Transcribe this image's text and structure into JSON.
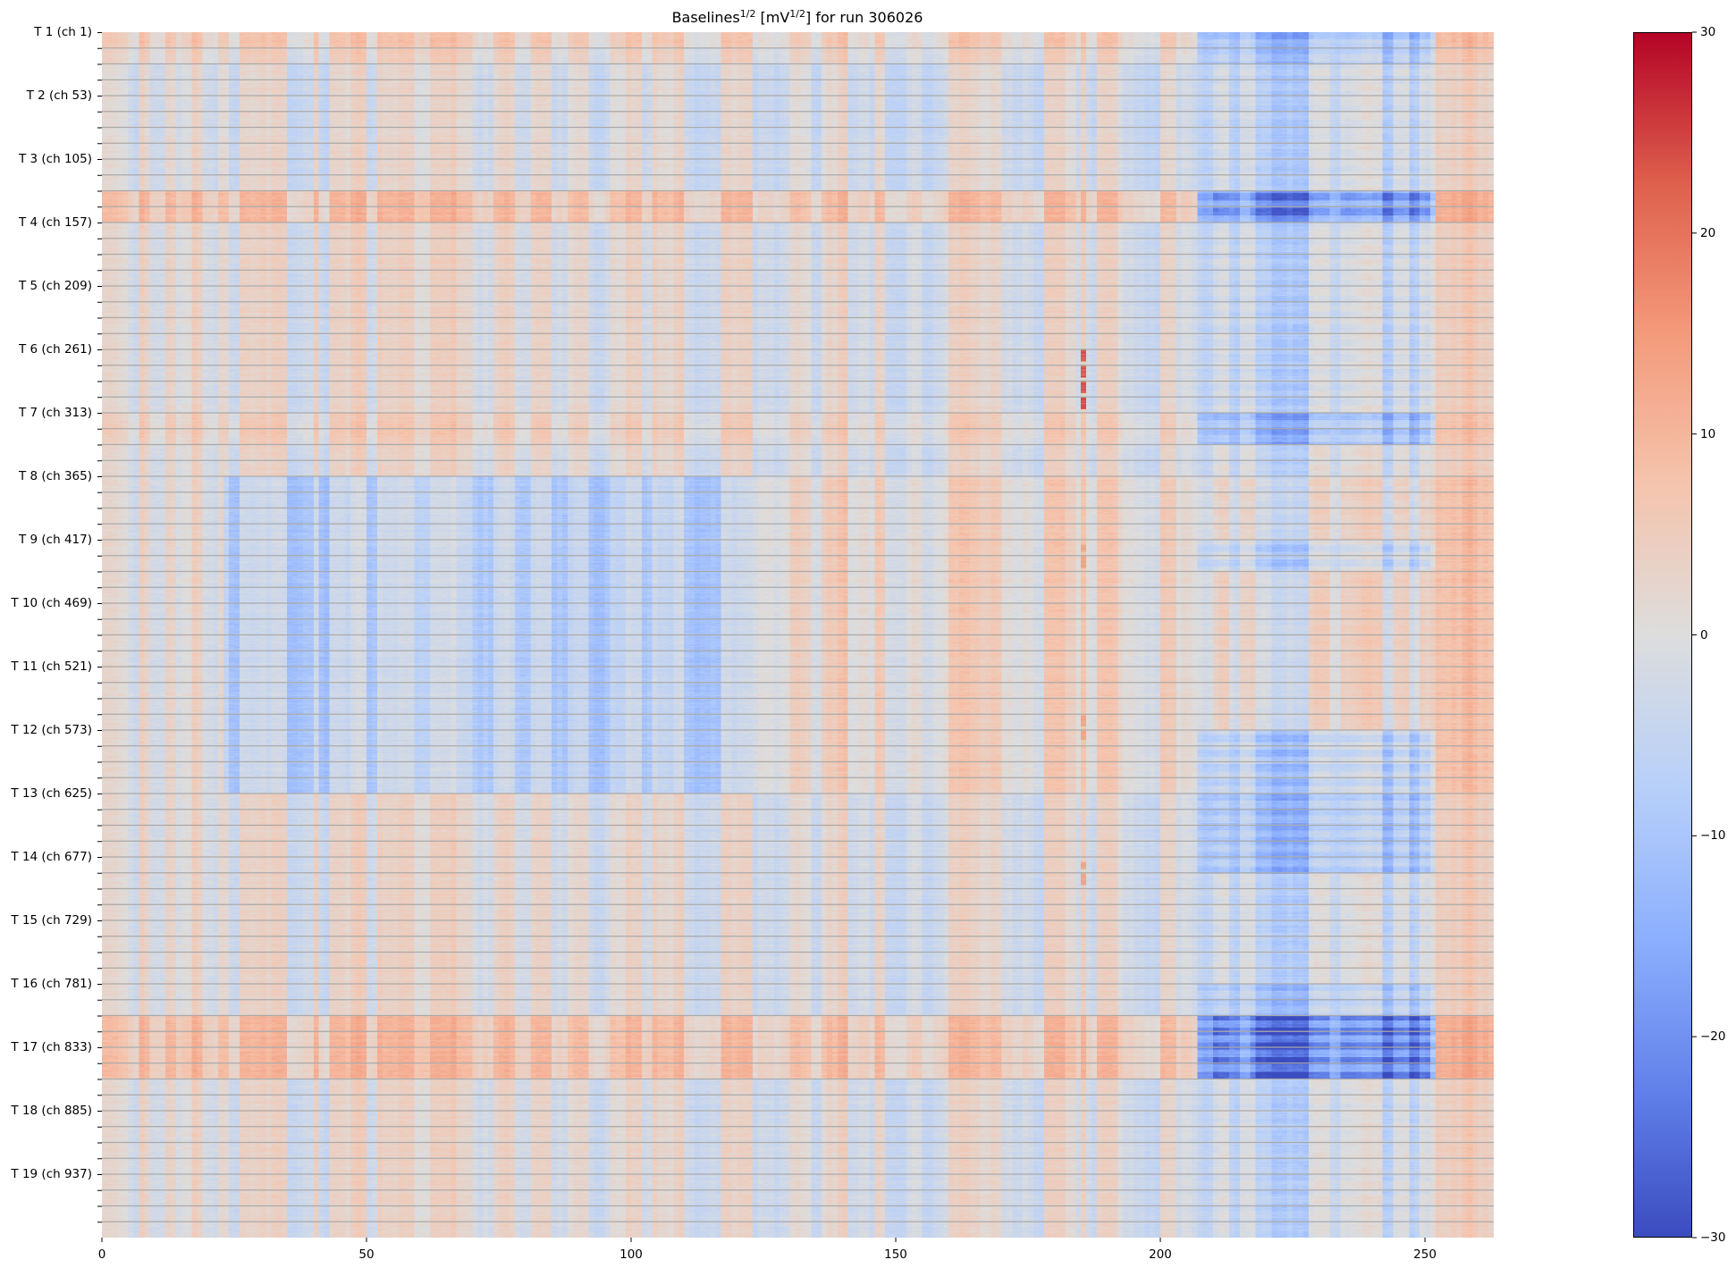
{
  "chart_data": {
    "type": "heatmap",
    "title_parts": [
      {
        "text": "Baselines",
        "sup": false
      },
      {
        "text": "1/2",
        "sup": true
      },
      {
        "text": " [mV",
        "sup": false
      },
      {
        "text": "1/2",
        "sup": true
      },
      {
        "text": "] for run 306026",
        "sup": false
      }
    ],
    "n_columns": 263,
    "n_channels": 988,
    "channels_per_tile": 52,
    "gridline_every_channels": 13,
    "xlim": [
      0,
      263
    ],
    "x_ticks": [
      0,
      50,
      100,
      150,
      200,
      250
    ],
    "y_tick_labels": [
      "T 1 (ch 1)",
      "T 2 (ch 53)",
      "T 3 (ch 105)",
      "T 4 (ch 157)",
      "T 5 (ch 209)",
      "T 6 (ch 261)",
      "T 7 (ch 313)",
      "T 8 (ch 365)",
      "T 9 (ch 417)",
      "T 10 (ch 469)",
      "T 11 (ch 521)",
      "T 12 (ch 573)",
      "T 13 (ch 625)",
      "T 14 (ch 677)",
      "T 15 (ch 729)",
      "T 16 (ch 781)",
      "T 17 (ch 833)",
      "T 18 (ch 885)",
      "T 19 (ch 937)"
    ],
    "colorbar": {
      "colormap": "coolwarm",
      "vmin": -30,
      "vmax": 30,
      "ticks": [
        30,
        20,
        10,
        0,
        -10,
        -20,
        -30
      ],
      "tick_labels": [
        "30",
        "20",
        "10",
        "0",
        "−10",
        "−20",
        "−30"
      ],
      "stops": [
        "#3b4cc0",
        "#6282ea",
        "#8db0fe",
        "#b8d0f9",
        "#dddddd",
        "#f5c4ad",
        "#f49a7b",
        "#de604d",
        "#b40426"
      ]
    },
    "gridline_color": "#aaaaaa",
    "approx_model": {
      "column_profile": [
        [
          0,
          5,
          2
        ],
        [
          5,
          7,
          -3
        ],
        [
          7,
          9,
          4
        ],
        [
          9,
          12,
          -2
        ],
        [
          12,
          14,
          4
        ],
        [
          14,
          17,
          0
        ],
        [
          17,
          19,
          5
        ],
        [
          19,
          22,
          -2
        ],
        [
          22,
          24,
          3
        ],
        [
          24,
          26,
          -4
        ],
        [
          26,
          35,
          4
        ],
        [
          35,
          40,
          -4
        ],
        [
          40,
          41,
          5
        ],
        [
          41,
          43,
          -5
        ],
        [
          43,
          47,
          3
        ],
        [
          47,
          50,
          6
        ],
        [
          50,
          52,
          -3
        ],
        [
          52,
          56,
          4
        ],
        [
          56,
          59,
          6
        ],
        [
          59,
          62,
          0
        ],
        [
          62,
          66,
          5
        ],
        [
          66,
          67,
          8
        ],
        [
          67,
          70,
          3
        ],
        [
          70,
          74,
          -2
        ],
        [
          74,
          78,
          4
        ],
        [
          78,
          81,
          -3
        ],
        [
          81,
          85,
          4
        ],
        [
          85,
          88,
          -3
        ],
        [
          88,
          92,
          2
        ],
        [
          92,
          96,
          -4
        ],
        [
          96,
          99,
          2
        ],
        [
          99,
          102,
          4
        ],
        [
          102,
          104,
          -2
        ],
        [
          104,
          108,
          3
        ],
        [
          108,
          110,
          5
        ],
        [
          110,
          113,
          -4
        ],
        [
          113,
          117,
          -3
        ],
        [
          117,
          120,
          4
        ],
        [
          120,
          123,
          5
        ],
        [
          123,
          130,
          -4
        ],
        [
          130,
          134,
          2
        ],
        [
          134,
          136,
          -5
        ],
        [
          136,
          139,
          3
        ],
        [
          139,
          141,
          5
        ],
        [
          141,
          146,
          -3
        ],
        [
          146,
          148,
          4
        ],
        [
          148,
          152,
          -5
        ],
        [
          152,
          155,
          -2
        ],
        [
          155,
          157,
          -6
        ],
        [
          157,
          160,
          -3
        ],
        [
          160,
          164,
          5
        ],
        [
          164,
          170,
          3
        ],
        [
          170,
          176,
          -3
        ],
        [
          176,
          178,
          -6
        ],
        [
          178,
          182,
          6
        ],
        [
          182,
          184,
          3
        ],
        [
          184,
          185,
          -3
        ],
        [
          185,
          186,
          5
        ],
        [
          186,
          188,
          -4
        ],
        [
          188,
          192,
          4
        ],
        [
          192,
          195,
          -2
        ],
        [
          195,
          200,
          -5
        ],
        [
          200,
          203,
          4
        ],
        [
          203,
          207,
          -2
        ],
        [
          207,
          210,
          -3
        ],
        [
          210,
          213,
          4
        ],
        [
          213,
          215,
          -4
        ],
        [
          215,
          218,
          3
        ],
        [
          218,
          221,
          -2
        ],
        [
          221,
          228,
          -5
        ],
        [
          228,
          232,
          4
        ],
        [
          232,
          234,
          -3
        ],
        [
          234,
          238,
          4
        ],
        [
          238,
          242,
          6
        ],
        [
          242,
          244,
          -4
        ],
        [
          244,
          247,
          5
        ],
        [
          247,
          249,
          -3
        ],
        [
          249,
          252,
          3
        ],
        [
          252,
          257,
          6
        ],
        [
          257,
          260,
          8
        ],
        [
          260,
          263,
          5
        ]
      ],
      "channel_profile": [
        [
          0,
          13,
          5
        ],
        [
          13,
          26,
          2
        ],
        [
          26,
          130,
          -1
        ],
        [
          130,
          156,
          8
        ],
        [
          156,
          312,
          0
        ],
        [
          312,
          338,
          3
        ],
        [
          338,
          364,
          0
        ],
        [
          364,
          624,
          0
        ],
        [
          624,
          806,
          0
        ],
        [
          806,
          858,
          8
        ],
        [
          858,
          988,
          0
        ]
      ],
      "region_offsets": [
        {
          "columns": [
            23,
            123
          ],
          "channels": [
            364,
            624
          ],
          "value": -7
        },
        {
          "columns": [
            123,
            263
          ],
          "channels": [
            364,
            624
          ],
          "value": 3
        }
      ],
      "right_block": {
        "columns": [
          207,
          252
        ],
        "column_weights": [
          [
            207,
            210,
            0.6
          ],
          [
            210,
            213,
            1.1
          ],
          [
            213,
            217,
            0.7
          ],
          [
            217,
            232,
            1.0
          ],
          [
            232,
            234,
            0.5
          ],
          [
            234,
            251,
            1.0
          ],
          [
            251,
            252,
            0.6
          ]
        ],
        "channel_offsets": [
          [
            0,
            13,
            -12
          ],
          [
            13,
            26,
            -10
          ],
          [
            26,
            130,
            -4
          ],
          [
            130,
            156,
            -20
          ],
          [
            156,
            312,
            -5
          ],
          [
            312,
            338,
            -13
          ],
          [
            338,
            416,
            -3
          ],
          [
            416,
            442,
            -9
          ],
          [
            442,
            572,
            -2
          ],
          [
            572,
            690,
            -11
          ],
          [
            690,
            780,
            -4
          ],
          [
            780,
            806,
            -9
          ],
          [
            806,
            858,
            -24
          ],
          [
            858,
            988,
            -4
          ]
        ]
      },
      "hot_spots": [
        {
          "column": 185,
          "channels": [
            259,
            311
          ],
          "value": 25
        },
        {
          "column": 185,
          "channels": [
            420,
            440
          ],
          "value": 14
        },
        {
          "column": 185,
          "channels": [
            560,
            580
          ],
          "value": 14
        },
        {
          "column": 185,
          "channels": [
            680,
            700
          ],
          "value": 14
        }
      ]
    }
  }
}
